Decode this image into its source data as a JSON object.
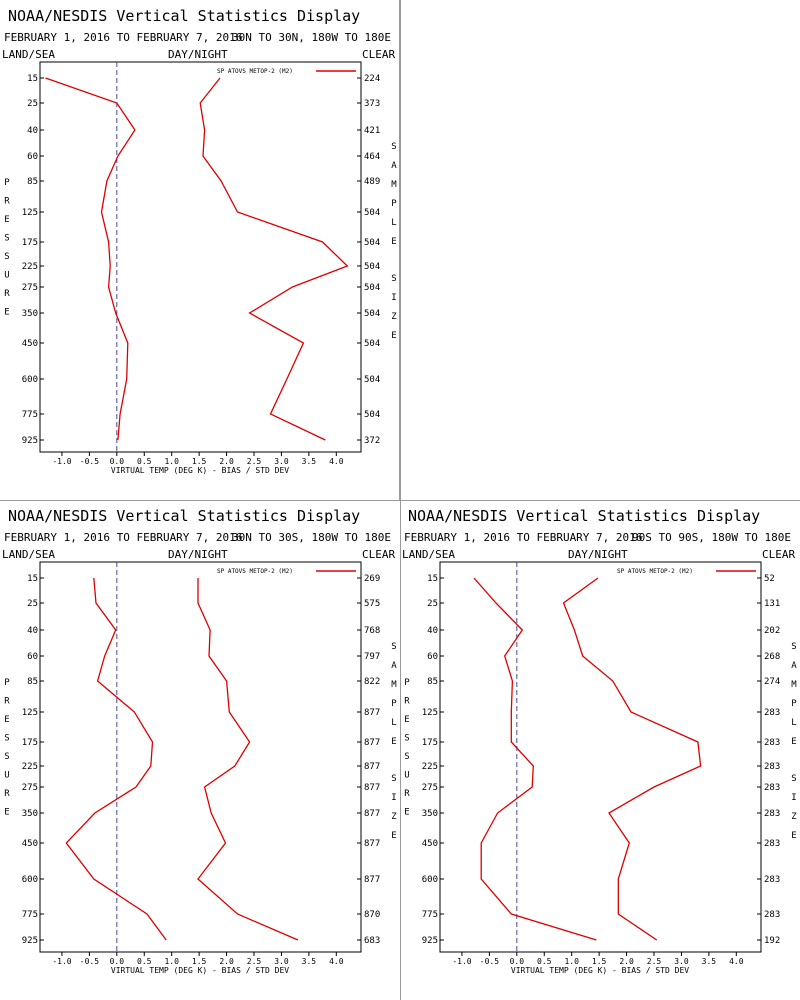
{
  "panels": [
    {
      "title": "NOAA/NESDIS Vertical Statistics Display",
      "date_range": "FEBRUARY 1, 2016 TO FEBRUARY 7, 2016",
      "region": "30N TO 30N, 180W TO 180E",
      "hdr_left": "LAND/SEA",
      "hdr_mid": "DAY/NIGHT",
      "hdr_right": "CLEAR",
      "legend": "SP ATOVS METOP-2 (M2)",
      "xlabel": "VIRTUAL TEMP (DEG K) - BIAS / STD DEV",
      "left_vlabel": "PRESSURE",
      "right_vlabel": "SAMPLE SIZE",
      "x_ticks": [
        "-1.0",
        "-0.5",
        "0.0",
        "0.5",
        "1.0",
        "1.5",
        "2.0",
        "2.5",
        "3.0",
        "3.5",
        "4.0"
      ],
      "levels": [
        "15",
        "25",
        "40",
        "60",
        "85",
        "125",
        "175",
        "225",
        "275",
        "350",
        "450",
        "600",
        "775",
        "925"
      ],
      "sample_sizes": [
        "224",
        "373",
        "421",
        "464",
        "489",
        "504",
        "504",
        "504",
        "504",
        "504",
        "504",
        "504",
        "504",
        "372"
      ]
    },
    {
      "title": "NOAA/NESDIS Vertical Statistics Display",
      "date_range": "FEBRUARY 1, 2016 TO FEBRUARY 7, 2016",
      "region": "30N TO 30S, 180W TO 180E",
      "hdr_left": "LAND/SEA",
      "hdr_mid": "DAY/NIGHT",
      "hdr_right": "CLEAR",
      "legend": "SP ATOVS METOP-2 (M2)",
      "xlabel": "VIRTUAL TEMP (DEG K) - BIAS / STD DEV",
      "left_vlabel": "PRESSURE",
      "right_vlabel": "SAMPLE SIZE",
      "x_ticks": [
        "-1.0",
        "-0.5",
        "0.0",
        "0.5",
        "1.0",
        "1.5",
        "2.0",
        "2.5",
        "3.0",
        "3.5",
        "4.0"
      ],
      "levels": [
        "15",
        "25",
        "40",
        "60",
        "85",
        "125",
        "175",
        "225",
        "275",
        "350",
        "450",
        "600",
        "775",
        "925"
      ],
      "sample_sizes": [
        "269",
        "575",
        "768",
        "797",
        "822",
        "877",
        "877",
        "877",
        "877",
        "877",
        "877",
        "877",
        "870",
        "683"
      ]
    },
    {
      "title": "NOAA/NESDIS Vertical Statistics Display",
      "date_range": "FEBRUARY 1, 2016 TO FEBRUARY 7, 2016",
      "region": "90S TO 90S, 180W TO 180E",
      "hdr_left": "LAND/SEA",
      "hdr_mid": "DAY/NIGHT",
      "hdr_right": "CLEAR",
      "legend": "SP ATOVS METOP-2 (M2)",
      "xlabel": "VIRTUAL TEMP (DEG K) - BIAS / STD DEV",
      "left_vlabel": "PRESSURE",
      "right_vlabel": "SAMPLE SIZE",
      "x_ticks": [
        "-1.0",
        "-0.5",
        "0.0",
        "0.5",
        "1.0",
        "1.5",
        "2.0",
        "2.5",
        "3.0",
        "3.5",
        "4.0"
      ],
      "levels": [
        "15",
        "25",
        "40",
        "60",
        "85",
        "125",
        "175",
        "225",
        "275",
        "350",
        "450",
        "600",
        "775",
        "925"
      ],
      "sample_sizes": [
        "52",
        "131",
        "202",
        "268",
        "274",
        "283",
        "283",
        "283",
        "283",
        "283",
        "283",
        "283",
        "283",
        "192"
      ]
    }
  ],
  "colors": {
    "series": "#dd0000",
    "zero_line": "#4a4a90",
    "frame": "#000000",
    "separator": "#9a9a9a"
  },
  "chart_data": [
    {
      "type": "line",
      "title": "NOAA/NESDIS Vertical Statistics Display",
      "xlabel": "VIRTUAL TEMP (DEG K) - BIAS / STD DEV",
      "ylabel": "PRESSURE",
      "xlim": [
        -1.4,
        4.45
      ],
      "y": [
        15,
        25,
        40,
        60,
        85,
        125,
        175,
        225,
        275,
        350,
        450,
        600,
        775,
        925
      ],
      "series": [
        {
          "name": "SP ATOVS METOP-2 (M2)",
          "role": "bias",
          "values": [
            -1.3,
            0.0,
            0.33,
            0.02,
            -0.18,
            -0.28,
            -0.15,
            -0.12,
            -0.15,
            -0.02,
            0.2,
            0.18,
            0.06,
            0.02
          ]
        },
        {
          "name": "SP ATOVS METOP-2 (M2)",
          "role": "std dev",
          "values": [
            1.88,
            1.52,
            1.6,
            1.57,
            1.9,
            2.2,
            3.75,
            4.2,
            3.2,
            2.42,
            3.4,
            3.1,
            2.8,
            3.8
          ]
        }
      ],
      "sample_size": [
        224,
        373,
        421,
        464,
        489,
        504,
        504,
        504,
        504,
        504,
        504,
        504,
        504,
        372
      ]
    },
    {
      "type": "line",
      "title": "NOAA/NESDIS Vertical Statistics Display",
      "xlabel": "VIRTUAL TEMP (DEG K) - BIAS / STD DEV",
      "ylabel": "PRESSURE",
      "xlim": [
        -1.4,
        4.45
      ],
      "y": [
        15,
        25,
        40,
        60,
        85,
        125,
        175,
        225,
        275,
        350,
        450,
        600,
        775,
        925
      ],
      "series": [
        {
          "name": "SP ATOVS METOP-2 (M2)",
          "role": "bias",
          "values": [
            -0.42,
            -0.38,
            -0.02,
            -0.22,
            -0.35,
            0.32,
            0.65,
            0.62,
            0.35,
            -0.4,
            -0.92,
            -0.42,
            0.55,
            0.9
          ]
        },
        {
          "name": "SP ATOVS METOP-2 (M2)",
          "role": "std dev",
          "values": [
            1.48,
            1.48,
            1.7,
            1.68,
            2.0,
            2.05,
            2.42,
            2.15,
            1.6,
            1.72,
            1.98,
            1.48,
            2.2,
            3.3
          ]
        }
      ],
      "sample_size": [
        269,
        575,
        768,
        797,
        822,
        877,
        877,
        877,
        877,
        877,
        877,
        877,
        870,
        683
      ]
    },
    {
      "type": "line",
      "title": "NOAA/NESDIS Vertical Statistics Display",
      "xlabel": "VIRTUAL TEMP (DEG K) - BIAS / STD DEV",
      "ylabel": "PRESSURE",
      "xlim": [
        -1.4,
        4.45
      ],
      "y": [
        15,
        25,
        40,
        60,
        85,
        125,
        175,
        225,
        275,
        350,
        450,
        600,
        775,
        925
      ],
      "series": [
        {
          "name": "SP ATOVS METOP-2 (M2)",
          "role": "bias",
          "values": [
            -0.78,
            -0.38,
            0.1,
            -0.22,
            -0.08,
            -0.1,
            -0.1,
            0.3,
            0.28,
            -0.35,
            -0.65,
            -0.65,
            -0.1,
            1.45
          ]
        },
        {
          "name": "SP ATOVS METOP-2 (M2)",
          "role": "std dev",
          "values": [
            1.48,
            0.85,
            1.05,
            1.2,
            1.75,
            2.08,
            3.3,
            3.35,
            2.5,
            1.68,
            2.05,
            1.85,
            1.85,
            2.55
          ]
        }
      ],
      "sample_size": [
        52,
        131,
        202,
        268,
        274,
        283,
        283,
        283,
        283,
        283,
        283,
        283,
        283,
        192
      ]
    }
  ]
}
